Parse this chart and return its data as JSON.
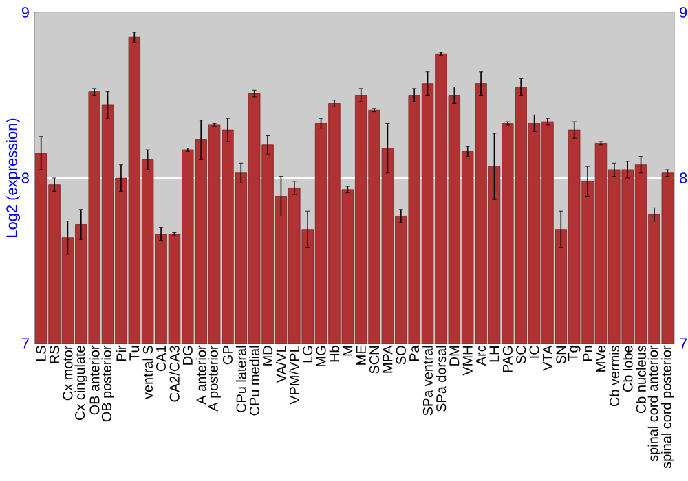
{
  "chart_data": {
    "type": "bar",
    "ylabel": "Log2 (expression)",
    "categories": [
      "LS",
      "RS",
      "Cx motor",
      "Cx cingulate",
      "OB anterior",
      "OB posterior",
      "Pir",
      "Tu",
      "ventral S",
      "CA1",
      "CA2/CA3",
      "DG",
      "A anterior",
      "A posterior",
      "GP",
      "CPu lateral",
      "CPu medial",
      "MD",
      "VA/VL",
      "VPM/VPL",
      "LG",
      "MG",
      "Hb",
      "M",
      "ME",
      "SCN",
      "MPA",
      "SO",
      "Pa",
      "SPa ventral",
      "SPa dorsal",
      "DM",
      "VMH",
      "Arc",
      "LH",
      "PAG",
      "SC",
      "IC",
      "VTA",
      "SN",
      "Tg",
      "Pn",
      "MVe",
      "Cb vermis",
      "Cb lobe",
      "Cb nucleus",
      "spinal cord anterior",
      "spinal cord posterior"
    ],
    "values": [
      8.15,
      7.96,
      7.64,
      7.72,
      8.52,
      8.44,
      8.0,
      8.85,
      8.11,
      7.66,
      7.66,
      8.17,
      8.23,
      8.32,
      8.29,
      8.03,
      8.51,
      8.2,
      7.89,
      7.94,
      7.69,
      8.33,
      8.45,
      7.93,
      8.5,
      8.41,
      8.18,
      7.77,
      8.5,
      8.57,
      8.75,
      8.5,
      8.16,
      8.57,
      8.07,
      8.33,
      8.55,
      8.33,
      8.34,
      7.69,
      8.29,
      7.98,
      8.21,
      8.05,
      8.05,
      8.08,
      7.78,
      8.03
    ],
    "errors": [
      0.1,
      0.04,
      0.1,
      0.09,
      0.02,
      0.08,
      0.08,
      0.03,
      0.06,
      0.04,
      0.01,
      0.01,
      0.12,
      0.01,
      0.07,
      0.06,
      0.02,
      0.055,
      0.12,
      0.04,
      0.11,
      0.03,
      0.02,
      0.02,
      0.04,
      0.01,
      0.15,
      0.04,
      0.04,
      0.07,
      0.01,
      0.05,
      0.03,
      0.07,
      0.2,
      0.01,
      0.05,
      0.05,
      0.02,
      0.11,
      0.05,
      0.09,
      0.01,
      0.04,
      0.05,
      0.05,
      0.04,
      0.02
    ],
    "color": "#b03232",
    "ylim": [
      7,
      9
    ],
    "yticks": [
      7,
      8,
      9
    ],
    "y2lim": [
      7,
      9
    ],
    "y2ticks": [
      7,
      8,
      9
    ],
    "grid": "y"
  }
}
